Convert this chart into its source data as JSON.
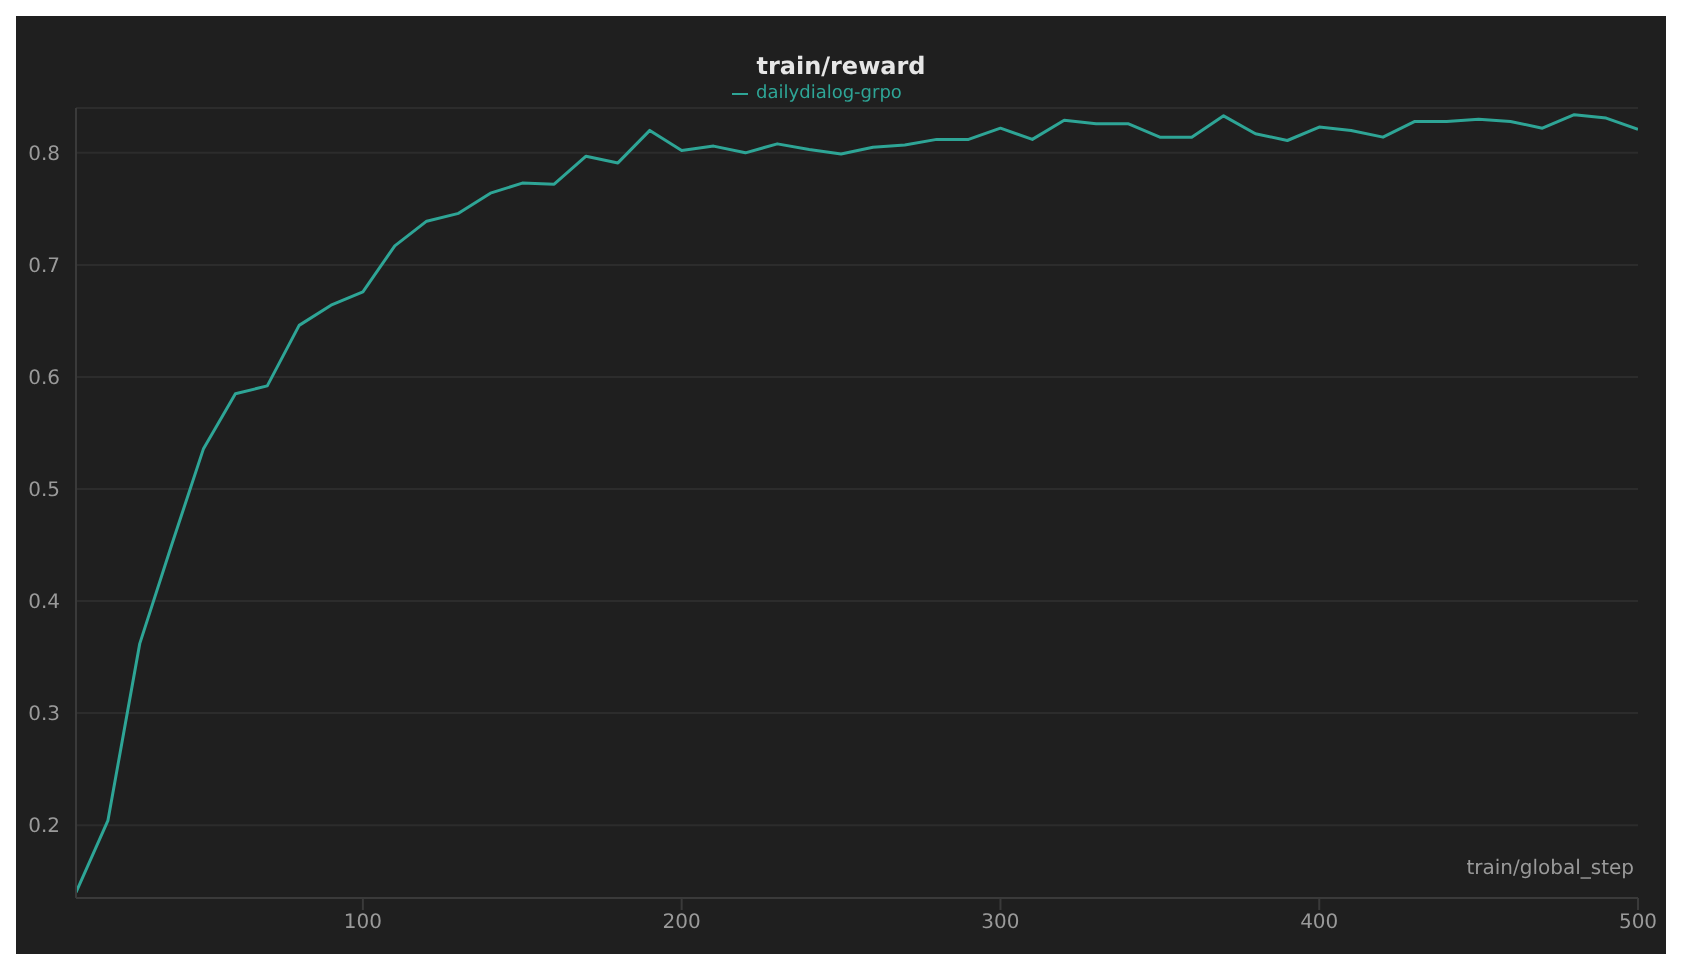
{
  "chart_data": {
    "type": "line",
    "title": "train/reward",
    "xlabel": "train/global_step",
    "x": [
      10,
      20,
      30,
      40,
      50,
      60,
      70,
      80,
      90,
      100,
      110,
      120,
      130,
      140,
      150,
      160,
      170,
      180,
      190,
      200,
      210,
      220,
      230,
      240,
      250,
      260,
      270,
      280,
      290,
      300,
      310,
      320,
      330,
      340,
      350,
      360,
      370,
      380,
      390,
      400,
      410,
      420,
      430,
      440,
      450,
      460,
      470,
      480,
      490,
      500
    ],
    "series": [
      {
        "name": "dailydialog-grpo",
        "color": "#2ea596",
        "values": [
          0.14,
          0.204,
          0.362,
          0.45,
          0.536,
          0.585,
          0.592,
          0.646,
          0.664,
          0.676,
          0.717,
          0.739,
          0.746,
          0.764,
          0.773,
          0.772,
          0.797,
          0.791,
          0.82,
          0.802,
          0.806,
          0.8,
          0.808,
          0.803,
          0.799,
          0.805,
          0.807,
          0.812,
          0.812,
          0.822,
          0.812,
          0.829,
          0.826,
          0.826,
          0.814,
          0.814,
          0.833,
          0.817,
          0.811,
          0.823,
          0.82,
          0.814,
          0.828,
          0.828,
          0.83,
          0.828,
          0.822,
          0.834,
          0.831,
          0.821
        ]
      }
    ],
    "xlim": [
      10,
      500
    ],
    "xticks": [
      100,
      200,
      300,
      400,
      500
    ],
    "ylim": [
      0.135,
      0.84
    ],
    "yticks": [
      0.2,
      0.3,
      0.4,
      0.5,
      0.6,
      0.7,
      0.8
    ],
    "grid": "y",
    "legend": "top",
    "marker": "none",
    "line_style": "solid"
  }
}
